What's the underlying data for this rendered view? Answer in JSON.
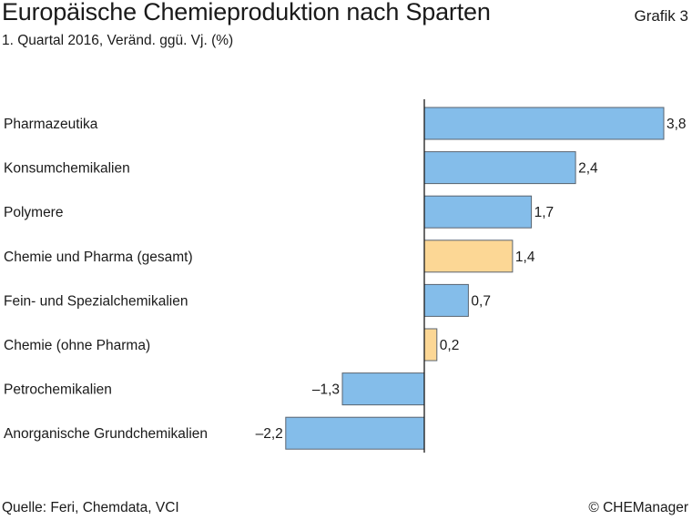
{
  "header": {
    "title": "Europäische Chemieproduktion nach Sparten",
    "subtitle": "1. Quartal 2016, Veränd. ggü. Vj. (%)",
    "figure_label": "Grafik 3"
  },
  "footer": {
    "source": "Quelle: Feri, Chemdata, VCI",
    "copyright": "© CHEManager"
  },
  "colors": {
    "blue": "#84bdea",
    "orange": "#fcd795",
    "stroke": "#5a6470",
    "axis": "#1a1a1a"
  },
  "chart_data": {
    "type": "bar",
    "orientation": "horizontal",
    "title": "Europäische Chemieproduktion nach Sparten",
    "subtitle": "1. Quartal 2016, Veränd. ggü. Vj. (%)",
    "categories": [
      "Pharmazeutika",
      "Konsumchemikalien",
      "Polymere",
      "Chemie und Pharma (gesamt)",
      "Fein- und Spezialchemikalien",
      "Chemie (ohne Pharma)",
      "Petrochemikalien",
      "Anorganische Grundchemikalien"
    ],
    "values": [
      3.8,
      2.4,
      1.7,
      1.4,
      0.7,
      0.2,
      -1.3,
      -2.2
    ],
    "value_labels": [
      "3,8",
      "2,4",
      "1,7",
      "1,4",
      "0,7",
      "0,2",
      "–1,3",
      "–2,2"
    ],
    "bar_colors": [
      "blue",
      "blue",
      "blue",
      "orange",
      "blue",
      "orange",
      "blue",
      "blue"
    ],
    "xlim": [
      -2.2,
      3.8
    ],
    "grid": false,
    "legend": "none"
  }
}
